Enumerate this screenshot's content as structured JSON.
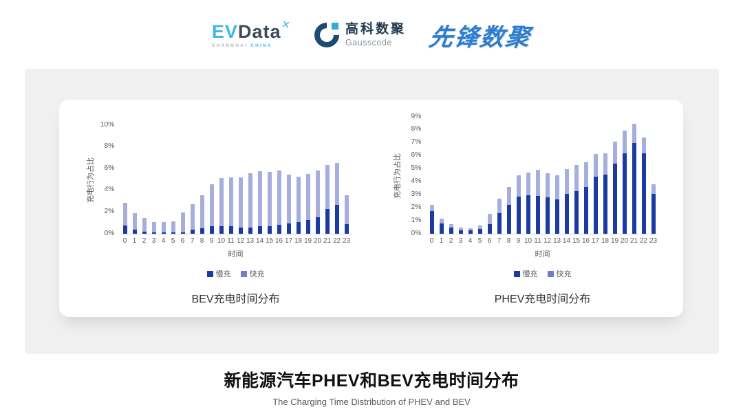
{
  "header": {
    "evdata": {
      "ev": "EV",
      "data": "Data",
      "sub_left": "SHANGHAI ",
      "sub_right": "CHINA"
    },
    "gausscode": {
      "cn": "高科数聚",
      "en": "Gausscode"
    },
    "pioneer": "先锋数聚"
  },
  "icons": {
    "evdata_mark": "✕"
  },
  "colors": {
    "slow": "#1b3aa2",
    "fast": "#a6aedd",
    "fast_legend": "#6f7ec6",
    "panel_bg": "#f0f0f0",
    "axis_text": "#595959"
  },
  "footer": {
    "title": "新能源汽车PHEV和BEV充电时间分布",
    "subtitle": "The Charging Time Distribution of PHEV and BEV"
  },
  "chart_data": [
    {
      "type": "bar",
      "stacked": true,
      "title": "BEV充电时间分布",
      "ylabel": "充电行为占比",
      "xlabel": "时间",
      "ylim": [
        0,
        10
      ],
      "ytick_step": 2,
      "grid": false,
      "legend_position": "bottom",
      "legend_colors": [
        "#1b3aa2",
        "#6f7ec6"
      ],
      "categories": [
        0,
        1,
        2,
        3,
        4,
        5,
        6,
        7,
        8,
        9,
        10,
        11,
        12,
        13,
        14,
        15,
        16,
        17,
        18,
        19,
        20,
        21,
        22,
        23
      ],
      "series": [
        {
          "name": "慢充",
          "color": "#1b3aa2",
          "values": [
            0.75,
            0.35,
            0.2,
            0.1,
            0.1,
            0.1,
            0.15,
            0.35,
            0.5,
            0.7,
            0.7,
            0.7,
            0.6,
            0.6,
            0.7,
            0.7,
            0.85,
            0.95,
            1.05,
            1.25,
            1.55,
            2.3,
            2.65,
            0.9
          ]
        },
        {
          "name": "快充",
          "color": "#a6aedd",
          "values": [
            2.1,
            1.55,
            1.25,
            1.0,
            0.95,
            1.05,
            1.8,
            2.35,
            3.05,
            3.85,
            4.4,
            4.5,
            4.6,
            4.95,
            5.05,
            5.0,
            4.95,
            4.5,
            4.2,
            4.25,
            4.3,
            4.05,
            3.85,
            2.65
          ]
        }
      ]
    },
    {
      "type": "bar",
      "stacked": true,
      "title": "PHEV充电时间分布",
      "ylabel": "充电行为占比",
      "xlabel": "时间",
      "ylim": [
        0,
        9
      ],
      "ytick_step": 1,
      "grid": false,
      "legend_position": "bottom",
      "legend_colors": [
        "#1b3aa2",
        "#6f7ec6"
      ],
      "categories": [
        0,
        1,
        2,
        3,
        4,
        5,
        6,
        7,
        8,
        9,
        10,
        11,
        12,
        13,
        14,
        15,
        16,
        17,
        18,
        19,
        20,
        21,
        22,
        23
      ],
      "series": [
        {
          "name": "慢充",
          "color": "#1b3aa2",
          "values": [
            1.75,
            0.8,
            0.5,
            0.27,
            0.25,
            0.38,
            0.73,
            1.57,
            2.25,
            2.87,
            2.95,
            2.9,
            2.82,
            2.64,
            3.09,
            3.28,
            3.58,
            4.39,
            4.56,
            5.4,
            6.2,
            7.0,
            6.17,
            3.05
          ]
        },
        {
          "name": "快充",
          "color": "#a6aedd",
          "values": [
            0.45,
            0.35,
            0.25,
            0.2,
            0.2,
            0.27,
            0.82,
            1.13,
            1.35,
            1.61,
            1.77,
            2.02,
            1.83,
            1.86,
            1.91,
            2.0,
            1.93,
            1.74,
            1.61,
            1.7,
            1.75,
            1.45,
            1.25,
            0.76
          ]
        }
      ]
    }
  ]
}
